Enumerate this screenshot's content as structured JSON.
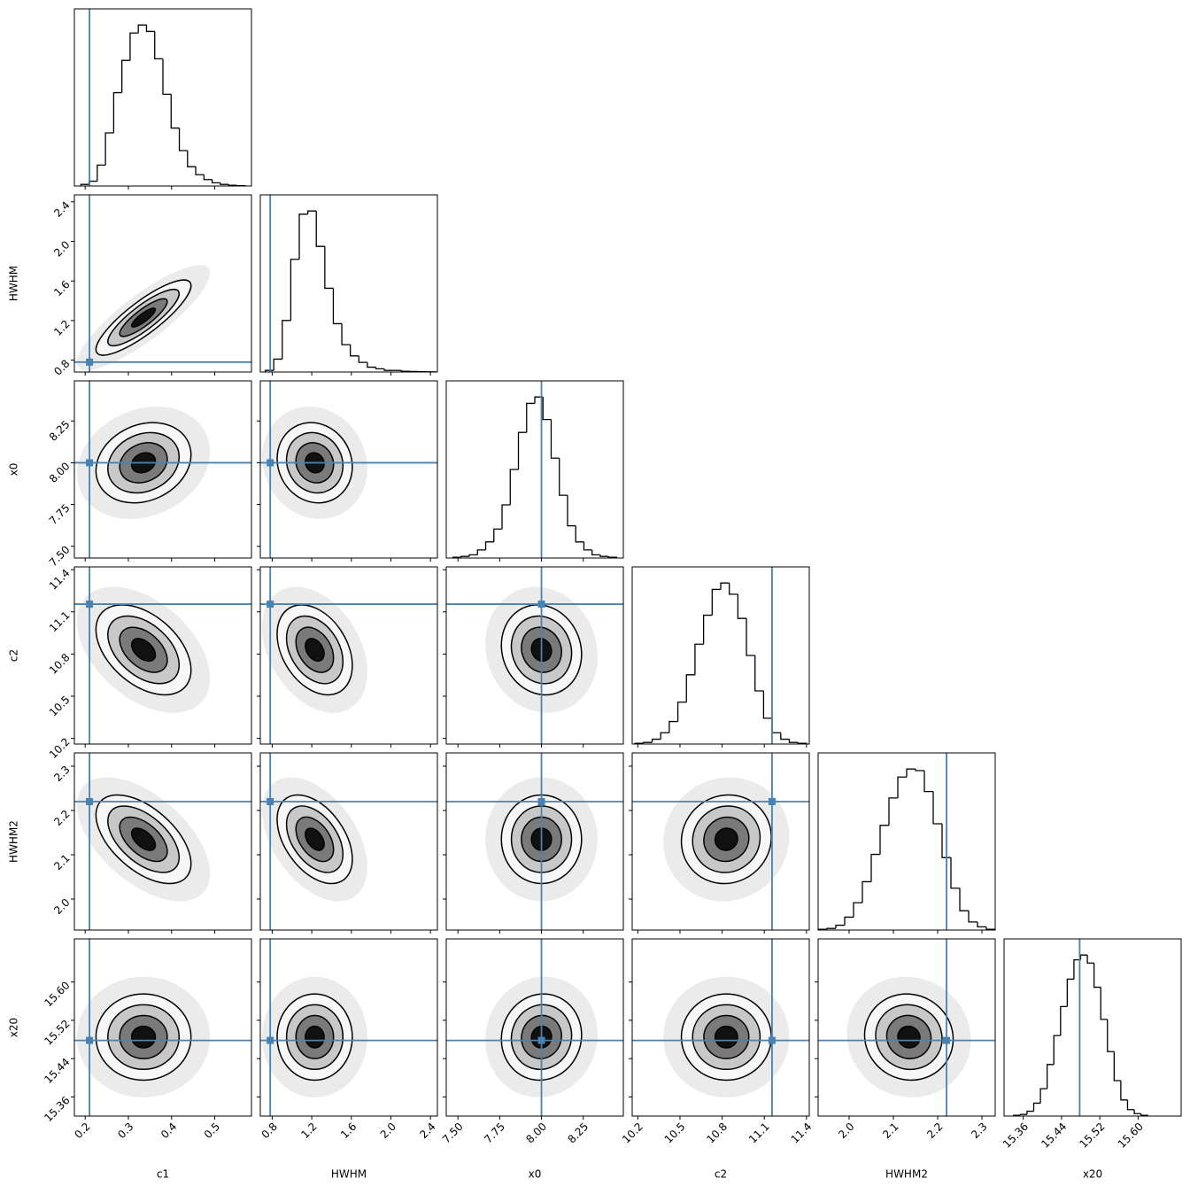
{
  "chart_data": {
    "type": "corner",
    "truth_color": "#4682b4",
    "hist_ylim": [
      0,
      1.1
    ],
    "parameters": [
      {
        "name": "c1",
        "lim": [
          0.175,
          0.585
        ],
        "ticks": [
          0.2,
          0.3,
          0.4,
          0.5
        ],
        "truth": 0.21,
        "mean": 0.335,
        "sd": 0.055,
        "bins": [
          0.19,
          0.209,
          0.228,
          0.247,
          0.266,
          0.285,
          0.304,
          0.323,
          0.342,
          0.361,
          0.38,
          0.399,
          0.418,
          0.437,
          0.456,
          0.475,
          0.494,
          0.513,
          0.532,
          0.551,
          0.57
        ],
        "counts": [
          0.01,
          0.03,
          0.13,
          0.33,
          0.58,
          0.78,
          0.95,
          1.0,
          0.96,
          0.79,
          0.57,
          0.36,
          0.22,
          0.12,
          0.07,
          0.04,
          0.02,
          0.01,
          0.005,
          0.002
        ]
      },
      {
        "name": "HWHM",
        "lim": [
          0.68,
          2.47
        ],
        "ticks": [
          0.8,
          1.2,
          1.6,
          {
            "value": 2,
            "label": "2.0"
          },
          2.4
        ],
        "truth": 0.78,
        "mean": 1.23,
        "sd": 0.19,
        "bins": [
          0.73,
          0.816,
          0.902,
          0.988,
          1.074,
          1.16,
          1.246,
          1.332,
          1.418,
          1.504,
          1.59,
          1.676,
          1.762,
          1.848,
          1.934,
          2.02,
          2.106,
          2.192,
          2.278,
          2.364,
          2.45
        ],
        "counts": [
          0.01,
          0.08,
          0.32,
          0.7,
          0.98,
          1.0,
          0.78,
          0.52,
          0.3,
          0.17,
          0.1,
          0.06,
          0.03,
          0.02,
          0.01,
          0.01,
          0.005,
          0.003,
          0.002,
          0.001
        ]
      },
      {
        "name": "x0",
        "lim": [
          7.43,
          8.49
        ],
        "ticks": [
          {
            "value": 7.5,
            "label": "7.50"
          },
          7.75,
          {
            "value": 8,
            "label": "8.00"
          },
          8.25
        ],
        "truth": 8.0,
        "mean": 8.0,
        "sd": 0.12,
        "bins": [
          7.47,
          7.519,
          7.568,
          7.617,
          7.666,
          7.715,
          7.764,
          7.813,
          7.862,
          7.911,
          7.96,
          8.009,
          8.058,
          8.107,
          8.156,
          8.205,
          8.254,
          8.303,
          8.352,
          8.401,
          8.45
        ],
        "counts": [
          0.005,
          0.01,
          0.02,
          0.05,
          0.1,
          0.18,
          0.33,
          0.55,
          0.78,
          0.96,
          1.0,
          0.86,
          0.62,
          0.39,
          0.2,
          0.1,
          0.05,
          0.02,
          0.01,
          0.005
        ]
      },
      {
        "name": "c2",
        "lim": [
          10.16,
          11.42
        ],
        "ticks": [
          10.2,
          10.5,
          10.8,
          11.1,
          11.4
        ],
        "truth": 11.155,
        "mean": 10.83,
        "sd": 0.16,
        "bins": [
          10.18,
          10.241,
          10.302,
          10.363,
          10.424,
          10.485,
          10.546,
          10.607,
          10.668,
          10.729,
          10.79,
          10.851,
          10.912,
          10.973,
          11.034,
          11.095,
          11.156,
          11.217,
          11.278,
          11.339,
          11.4
        ],
        "counts": [
          0.005,
          0.01,
          0.03,
          0.07,
          0.14,
          0.26,
          0.43,
          0.62,
          0.8,
          0.96,
          1.0,
          0.93,
          0.78,
          0.55,
          0.33,
          0.16,
          0.07,
          0.03,
          0.01,
          0.005
        ]
      },
      {
        "name": "HWHM2",
        "lim": [
          1.93,
          2.33
        ],
        "ticks": [
          {
            "value": 2,
            "label": "2.0"
          },
          2.1,
          2.2,
          2.3
        ],
        "truth": 2.22,
        "mean": 2.135,
        "sd": 0.05,
        "bins": [
          1.93,
          1.95,
          1.97,
          1.99,
          2.01,
          2.03,
          2.05,
          2.07,
          2.09,
          2.11,
          2.13,
          2.15,
          2.17,
          2.19,
          2.21,
          2.23,
          2.25,
          2.27,
          2.29,
          2.31,
          2.33
        ],
        "counts": [
          0.005,
          0.01,
          0.03,
          0.08,
          0.17,
          0.3,
          0.47,
          0.65,
          0.82,
          0.95,
          1.0,
          0.99,
          0.86,
          0.66,
          0.45,
          0.26,
          0.12,
          0.05,
          0.02,
          0.005
        ]
      },
      {
        "name": "x20",
        "lim": [
          15.32,
          15.69
        ],
        "ticks": [
          15.36,
          15.44,
          15.52,
          {
            "value": 15.6,
            "label": "15.60"
          }
        ],
        "truth": 15.478,
        "mean": 15.485,
        "sd": 0.045,
        "bins": [
          15.34,
          15.354,
          15.368,
          15.382,
          15.396,
          15.41,
          15.424,
          15.438,
          15.452,
          15.466,
          15.48,
          15.494,
          15.508,
          15.522,
          15.536,
          15.55,
          15.564,
          15.578,
          15.592,
          15.606,
          15.62
        ],
        "counts": [
          0.005,
          0.01,
          0.03,
          0.08,
          0.17,
          0.32,
          0.5,
          0.68,
          0.85,
          0.97,
          1.0,
          0.95,
          0.8,
          0.6,
          0.4,
          0.22,
          0.1,
          0.04,
          0.015,
          0.005
        ]
      }
    ],
    "correlations": [
      [
        0.85
      ],
      [
        0.2,
        -0.1
      ],
      [
        -0.45,
        -0.35,
        -0.1
      ],
      [
        -0.55,
        -0.45,
        0.0,
        0.05
      ],
      [
        0.0,
        0.0,
        0.05,
        0.0,
        -0.05
      ]
    ]
  }
}
